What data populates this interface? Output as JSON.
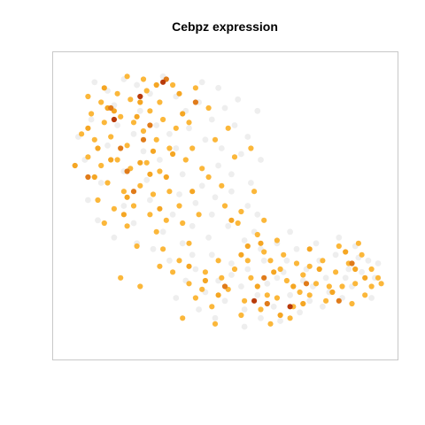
{
  "chart_data": {
    "type": "scatter",
    "title": "Cebpz expression",
    "xlabel": "",
    "ylabel": "",
    "xlim": [
      0,
      100
    ],
    "ylim": [
      0,
      100
    ],
    "grid": false,
    "legend": "none",
    "axes_visible": false,
    "colors": {
      "none": "#eeeeee",
      "low": "#fbb73a",
      "mid": "#f5a623",
      "high": "#e07b1a",
      "max": "#b83a0a"
    },
    "series": [
      {
        "level": "none",
        "points": [
          [
            10,
            93
          ],
          [
            14,
            90
          ],
          [
            19,
            94
          ],
          [
            23,
            92
          ],
          [
            27,
            89
          ],
          [
            31,
            95
          ],
          [
            16,
            85
          ],
          [
            24,
            83
          ],
          [
            9,
            80
          ],
          [
            35,
            88
          ],
          [
            38,
            83
          ],
          [
            42,
            86
          ],
          [
            46,
            80
          ],
          [
            50,
            84
          ],
          [
            53,
            78
          ],
          [
            39,
            77
          ],
          [
            44,
            73
          ],
          [
            49,
            70
          ],
          [
            55,
            68
          ],
          [
            48,
            64
          ],
          [
            35,
            70
          ],
          [
            30,
            66
          ],
          [
            37,
            61
          ],
          [
            43,
            57
          ],
          [
            26,
            59
          ],
          [
            19,
            62
          ],
          [
            12,
            58
          ],
          [
            7,
            66
          ],
          [
            5,
            74
          ],
          [
            14,
            71
          ],
          [
            22,
            75
          ],
          [
            29,
            78
          ],
          [
            41,
            51
          ],
          [
            46,
            47
          ],
          [
            52,
            55
          ],
          [
            57,
            50
          ],
          [
            40,
            43
          ],
          [
            34,
            47
          ],
          [
            27,
            52
          ],
          [
            19,
            50
          ],
          [
            11,
            45
          ],
          [
            22,
            44
          ],
          [
            31,
            41
          ],
          [
            37,
            37
          ],
          [
            45,
            39
          ],
          [
            51,
            43
          ],
          [
            56,
            38
          ],
          [
            58,
            58
          ],
          [
            52,
            61
          ],
          [
            60,
            47
          ],
          [
            61,
            35
          ],
          [
            66,
            37
          ],
          [
            72,
            35
          ],
          [
            78,
            37
          ],
          [
            84,
            33
          ],
          [
            90,
            36
          ],
          [
            94,
            31
          ],
          [
            96,
            25
          ],
          [
            88,
            28
          ],
          [
            81,
            25
          ],
          [
            75,
            28
          ],
          [
            68,
            27
          ],
          [
            63,
            23
          ],
          [
            70,
            19
          ],
          [
            76,
            17
          ],
          [
            82,
            20
          ],
          [
            89,
            22
          ],
          [
            95,
            18
          ],
          [
            62,
            31
          ],
          [
            57,
            28
          ],
          [
            52,
            30
          ],
          [
            46,
            33
          ],
          [
            41,
            28
          ],
          [
            38,
            24
          ],
          [
            44,
            20
          ],
          [
            50,
            17
          ],
          [
            56,
            14
          ],
          [
            61,
            11
          ],
          [
            67,
            10
          ],
          [
            73,
            13
          ],
          [
            55,
            22
          ],
          [
            48,
            24
          ],
          [
            69,
            31
          ],
          [
            79,
            31
          ],
          [
            86,
            18
          ],
          [
            92,
            27
          ],
          [
            77,
            22
          ],
          [
            65,
            15
          ],
          [
            52,
            26
          ],
          [
            40,
            33
          ],
          [
            33,
            31
          ],
          [
            23,
            37
          ],
          [
            16,
            39
          ],
          [
            43,
            93
          ],
          [
            48,
            91
          ],
          [
            54,
            87
          ],
          [
            60,
            83
          ],
          [
            57,
            74
          ],
          [
            61,
            66
          ],
          [
            36,
            54
          ],
          [
            28,
            35
          ],
          [
            8,
            52
          ],
          [
            25,
            69
          ],
          [
            17,
            78
          ],
          [
            33,
            75
          ],
          [
            47,
            53
          ],
          [
            59,
            41
          ],
          [
            70,
            41
          ],
          [
            85,
            39
          ],
          [
            91,
            32
          ],
          [
            97,
            30
          ],
          [
            80,
            15
          ],
          [
            60,
            19
          ],
          [
            42,
            14
          ],
          [
            35,
            18
          ],
          [
            47,
            11
          ],
          [
            56,
            8
          ],
          [
            66,
            25
          ],
          [
            74,
            24
          ],
          [
            87,
            25
          ]
        ]
      },
      {
        "level": "low",
        "points": [
          [
            8,
            88
          ],
          [
            12,
            86
          ],
          [
            17,
            89
          ],
          [
            21,
            87
          ],
          [
            26,
            90
          ],
          [
            30,
            86
          ],
          [
            34,
            92
          ],
          [
            9,
            82
          ],
          [
            13,
            79
          ],
          [
            18,
            81
          ],
          [
            22,
            79
          ],
          [
            27,
            83
          ],
          [
            31,
            80
          ],
          [
            6,
            75
          ],
          [
            10,
            73
          ],
          [
            15,
            74
          ],
          [
            20,
            71
          ],
          [
            25,
            76
          ],
          [
            29,
            73
          ],
          [
            33,
            70
          ],
          [
            8,
            67
          ],
          [
            12,
            64
          ],
          [
            17,
            66
          ],
          [
            21,
            63
          ],
          [
            26,
            65
          ],
          [
            30,
            62
          ],
          [
            14,
            58
          ],
          [
            19,
            55
          ],
          [
            24,
            57
          ],
          [
            28,
            54
          ],
          [
            11,
            52
          ],
          [
            16,
            49
          ],
          [
            22,
            50
          ],
          [
            27,
            47
          ],
          [
            32,
            45
          ],
          [
            37,
            44
          ],
          [
            38,
            66
          ],
          [
            39,
            79
          ],
          [
            41,
            91
          ],
          [
            45,
            84
          ],
          [
            47,
            73
          ],
          [
            43,
            63
          ],
          [
            49,
            57
          ],
          [
            53,
            67
          ],
          [
            58,
            70
          ],
          [
            51,
            77
          ],
          [
            55,
            48
          ],
          [
            60,
            40
          ],
          [
            64,
            31
          ],
          [
            68,
            33
          ],
          [
            72,
            30
          ],
          [
            76,
            29
          ],
          [
            80,
            31
          ],
          [
            84,
            27
          ],
          [
            88,
            30
          ],
          [
            92,
            33
          ],
          [
            95,
            28
          ],
          [
            86,
            22
          ],
          [
            78,
            23
          ],
          [
            73,
            20
          ],
          [
            69,
            24
          ],
          [
            63,
            19
          ],
          [
            58,
            25
          ],
          [
            53,
            28
          ],
          [
            48,
            31
          ],
          [
            44,
            27
          ],
          [
            39,
            23
          ],
          [
            34,
            27
          ],
          [
            41,
            18
          ],
          [
            46,
            15
          ],
          [
            51,
            21
          ],
          [
            56,
            17
          ],
          [
            61,
            14
          ],
          [
            66,
            18
          ],
          [
            71,
            15
          ],
          [
            76,
            19
          ],
          [
            81,
            17
          ],
          [
            90,
            23
          ],
          [
            95,
            22
          ],
          [
            97,
            25
          ],
          [
            91,
            37
          ],
          [
            85,
            36
          ],
          [
            66,
            38
          ],
          [
            62,
            34
          ],
          [
            57,
            31
          ],
          [
            49,
            25
          ],
          [
            37,
            11
          ],
          [
            30,
            29
          ],
          [
            24,
            22
          ],
          [
            18,
            25
          ],
          [
            33,
            55
          ],
          [
            42,
            47
          ],
          [
            36,
            50
          ],
          [
            29,
            41
          ],
          [
            20,
            43
          ],
          [
            13,
            44
          ],
          [
            23,
            36
          ],
          [
            39,
            37
          ],
          [
            25,
            94
          ],
          [
            20,
            95
          ],
          [
            35,
            77
          ],
          [
            40,
            70
          ],
          [
            45,
            60
          ],
          [
            50,
            50
          ],
          [
            54,
            44
          ],
          [
            59,
            55
          ],
          [
            62,
            45
          ],
          [
            67,
            28
          ],
          [
            74,
            26
          ],
          [
            82,
            22
          ],
          [
            89,
            16
          ],
          [
            93,
            19
          ],
          [
            98,
            23
          ],
          [
            70,
            11
          ],
          [
            64,
            9
          ],
          [
            55,
            12
          ],
          [
            47,
            9
          ],
          [
            43,
            21
          ],
          [
            36,
            31
          ],
          [
            31,
            35
          ]
        ]
      },
      {
        "level": "mid",
        "points": [
          [
            4,
            64
          ],
          [
            11,
            70
          ],
          [
            16,
            83
          ],
          [
            24,
            86
          ],
          [
            28,
            69
          ],
          [
            32,
            60
          ],
          [
            19,
            47
          ],
          [
            10,
            60
          ],
          [
            15,
            66
          ],
          [
            23,
            81
          ],
          [
            36,
            89
          ],
          [
            13,
            91
          ],
          [
            27,
            61
          ],
          [
            20,
            53
          ],
          [
            40,
            55
          ],
          [
            30,
            49
          ],
          [
            52,
            45
          ],
          [
            57,
            36
          ],
          [
            65,
            27
          ],
          [
            71,
            22
          ],
          [
            79,
            28
          ],
          [
            87,
            34
          ],
          [
            93,
            25
          ],
          [
            83,
            20
          ],
          [
            74,
            16
          ],
          [
            60,
            22
          ],
          [
            67,
            12
          ],
          [
            48,
            19
          ],
          [
            44,
            24
          ],
          [
            39,
            29
          ],
          [
            55,
            33
          ],
          [
            61,
            37
          ],
          [
            76,
            35
          ],
          [
            90,
            28
          ],
          [
            24,
            65
          ],
          [
            34,
            68
          ],
          [
            8,
            77
          ],
          [
            14,
            84
          ],
          [
            29,
            92
          ],
          [
            37,
            82
          ]
        ]
      },
      {
        "level": "high",
        "points": [
          [
            8,
            60
          ],
          [
            15,
            84
          ],
          [
            20,
            62
          ],
          [
            18,
            70
          ],
          [
            25,
            73
          ],
          [
            32,
            94
          ],
          [
            41,
            86
          ],
          [
            22,
            55
          ],
          [
            63,
            16
          ],
          [
            75,
            23
          ],
          [
            50,
            22
          ],
          [
            62,
            25
          ],
          [
            89,
            30
          ],
          [
            85,
            17
          ],
          [
            27,
            78
          ]
        ]
      },
      {
        "level": "max",
        "points": [
          [
            24,
            88
          ],
          [
            16,
            80
          ],
          [
            59,
            17
          ],
          [
            31,
            93
          ],
          [
            70,
            15
          ]
        ]
      }
    ]
  }
}
